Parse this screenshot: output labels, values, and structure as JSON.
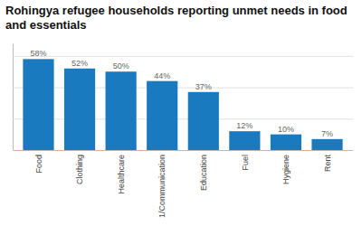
{
  "chart_data": {
    "type": "bar",
    "title": "Rohingya refugee households reporting unmet needs in food\nand essentials",
    "categories": [
      "Food",
      "Clothing",
      "Healthcare",
      "1/Communication",
      "Education",
      "Fuel",
      "Hygiene",
      "Rent"
    ],
    "values": [
      58,
      52,
      50,
      44,
      37,
      12,
      10,
      7
    ],
    "value_labels": [
      "58%",
      "52%",
      "50%",
      "44%",
      "37%",
      "12%",
      "10%",
      "7%"
    ],
    "color": "#1a7abf",
    "ylim": [
      0,
      68
    ],
    "yticks": [
      20,
      40,
      60
    ],
    "grid": true,
    "data_labels": true,
    "tick_labels": "x"
  }
}
